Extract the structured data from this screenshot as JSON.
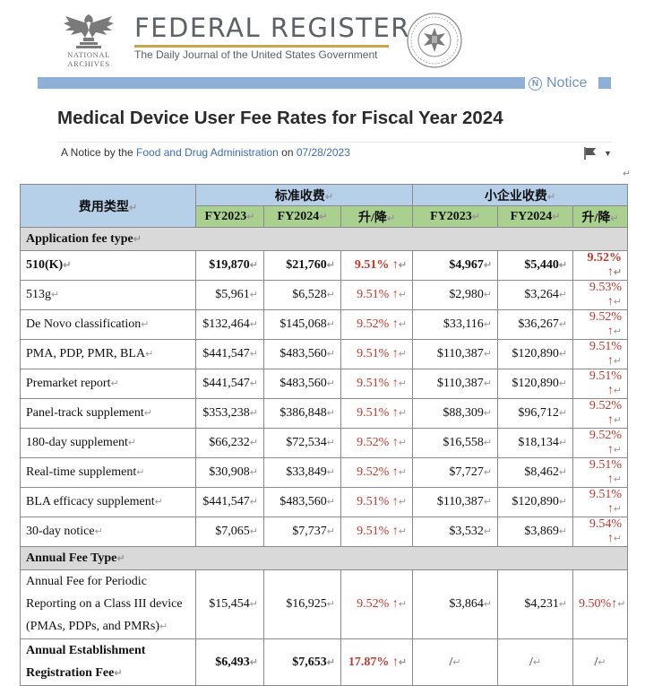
{
  "header": {
    "archives_line1": "NATIONAL",
    "archives_line2": "ARCHIVES",
    "title": "FEDERAL REGISTER",
    "subtitle": "The Daily Journal of the United States Government",
    "badge": "Notice"
  },
  "document": {
    "title": "Medical Device User Fee Rates for Fiscal Year 2024",
    "byline_prefix": "A Notice by the ",
    "agency": "Food and Drug Administration",
    "byline_mid": " on ",
    "date": "07/28/2023"
  },
  "table": {
    "fee_type_header": "费用类型",
    "standard_header": "标准收费",
    "small_header": "小企业收费",
    "col_fy2023": "FY2023",
    "col_fy2024": "FY2024",
    "col_change": "升/降",
    "return_mark": "↵",
    "section1": "Application fee type",
    "section2": "Annual Fee Type",
    "rows": [
      {
        "name": "510(K)",
        "s23": "$19,870",
        "s24": "$21,760",
        "s_chg": "9.51% ↑",
        "b23": "$4,967",
        "b24": "$5,440",
        "b_chg": "9.52% ↑"
      },
      {
        "name": "513g",
        "s23": "$5,961",
        "s24": "$6,528",
        "s_chg": "9.51% ↑",
        "b23": "$2,980",
        "b24": "$3,264",
        "b_chg": "9.53% ↑"
      },
      {
        "name": "De Novo classification",
        "s23": "$132,464",
        "s24": "$145,068",
        "s_chg": "9.52% ↑",
        "b23": "$33,116",
        "b24": "$36,267",
        "b_chg": "9.52% ↑"
      },
      {
        "name": "PMA, PDP, PMR, BLA",
        "s23": "$441,547",
        "s24": "$483,560",
        "s_chg": "9.51% ↑",
        "b23": "$110,387",
        "b24": "$120,890",
        "b_chg": "9.51% ↑"
      },
      {
        "name": "Premarket report",
        "s23": "$441,547",
        "s24": "$483,560",
        "s_chg": "9.51% ↑",
        "b23": "$110,387",
        "b24": "$120,890",
        "b_chg": "9.51% ↑"
      },
      {
        "name": "Panel-track supplement",
        "s23": "$353,238",
        "s24": "$386,848",
        "s_chg": "9.51% ↑",
        "b23": "$88,309",
        "b24": "$96,712",
        "b_chg": "9.52% ↑"
      },
      {
        "name": "180-day supplement",
        "s23": "$66,232",
        "s24": "$72,534",
        "s_chg": "9.52% ↑",
        "b23": "$16,558",
        "b24": "$18,134",
        "b_chg": "9.52% ↑"
      },
      {
        "name": "Real-time supplement",
        "s23": "$30,908",
        "s24": "$33,849",
        "s_chg": "9.52% ↑",
        "b23": "$7,727",
        "b24": "$8,462",
        "b_chg": "9.51% ↑"
      },
      {
        "name": "BLA efficacy supplement",
        "s23": "$441,547",
        "s24": "$483,560",
        "s_chg": "9.51% ↑",
        "b23": "$110,387",
        "b24": "$120,890",
        "b_chg": "9.51% ↑"
      },
      {
        "name": "30-day notice",
        "s23": "$7,065",
        "s24": "$7,737",
        "s_chg": "9.51% ↑",
        "b23": "$3,532",
        "b24": "$3,869",
        "b_chg": "9.54% ↑"
      }
    ],
    "annual": {
      "name_l1": "Annual Fee for Periodic",
      "name_l2": "Reporting on a Class III device",
      "name_l3": "(PMAs, PDPs, and PMRs)",
      "s23": "$15,454",
      "s24": "$16,925",
      "s_chg": "9.52% ↑",
      "b23": "$3,864",
      "b24": "$4,231",
      "b_chg": "9.50%↑"
    },
    "establishment": {
      "name_l1": "Annual Establishment",
      "name_l2": "Registration Fee",
      "s23": "$6,493",
      "s24": "$7,653",
      "s_chg": "17.87% ↑",
      "b23": "/",
      "b24": "/",
      "b_chg": "/"
    }
  }
}
